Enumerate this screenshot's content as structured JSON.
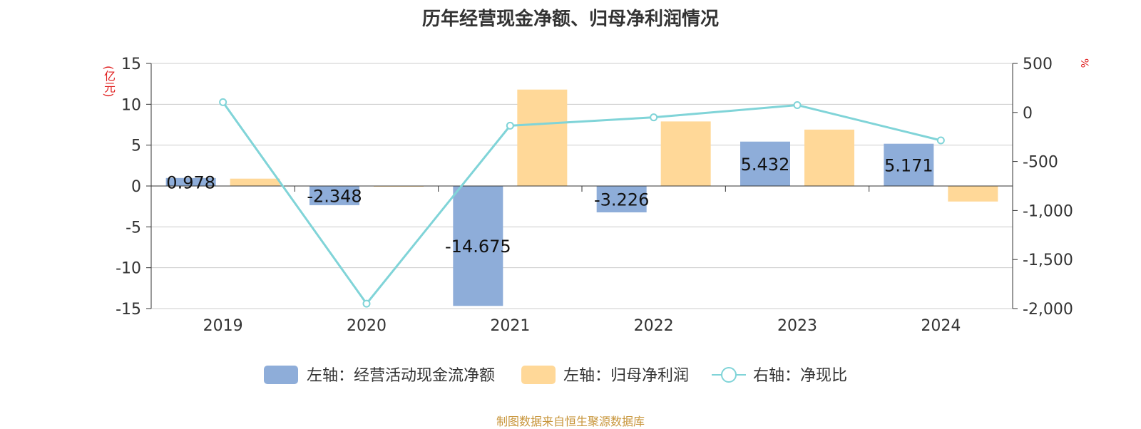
{
  "title": "历年经营现金净额、归母净利润情况",
  "left_unit": "(亿元)",
  "right_unit": "%",
  "source": "制图数据来自恒生聚源数据库",
  "colors": {
    "cash": "#8eadd9",
    "profit": "#ffd898",
    "ratio": "#80d4d8"
  },
  "chart_data": {
    "type": "bar",
    "categories": [
      "2019",
      "2020",
      "2021",
      "2022",
      "2023",
      "2024"
    ],
    "series": [
      {
        "name": "左轴：经营活动现金流净额",
        "axis": "left",
        "kind": "bar",
        "values": [
          0.978,
          -2.348,
          -14.675,
          -3.226,
          5.432,
          5.171
        ],
        "labels": [
          "0.978",
          "-2.348",
          "-14.675",
          "-3.226",
          "5.432",
          "5.171"
        ]
      },
      {
        "name": "左轴：归母净利润",
        "axis": "left",
        "kind": "bar",
        "values": [
          0.9,
          -0.05,
          11.8,
          7.9,
          6.9,
          -1.9
        ]
      },
      {
        "name": "右轴：净现比",
        "axis": "right",
        "kind": "line",
        "values": [
          105,
          -1950,
          -135,
          -50,
          75,
          -285
        ]
      }
    ],
    "y_left": {
      "min": -15,
      "max": 15,
      "ticks": [
        "15",
        "10",
        "5",
        "0",
        "-5",
        "-10",
        "-15"
      ]
    },
    "y_right": {
      "min": -2000,
      "max": 500,
      "ticks": [
        "500",
        "0",
        "-500",
        "-1,000",
        "-1,500",
        "-2,000"
      ]
    },
    "grid": true,
    "legend_position": "bottom"
  }
}
